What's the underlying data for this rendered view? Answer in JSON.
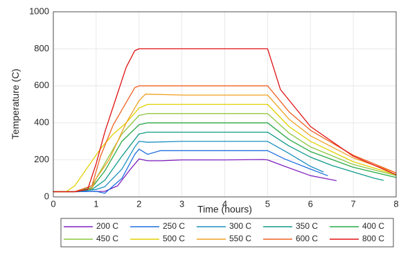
{
  "chart_data": {
    "type": "line",
    "xlabel": "Time (hours)",
    "ylabel": "Temperature (C)",
    "xlim": [
      0,
      8
    ],
    "ylim": [
      0,
      1000
    ],
    "xticks": [
      "0",
      "1",
      "2",
      "3",
      "4",
      "5",
      "6",
      "7",
      "8"
    ],
    "yticks": [
      "0",
      "200",
      "400",
      "600",
      "800",
      "1000"
    ],
    "grid": true,
    "legend_placement": "bottom",
    "series": [
      {
        "name": "200 C",
        "color": "#7f1fbf",
        "x": [
          0,
          0.5,
          1.2,
          1.5,
          1.8,
          2.0,
          2.2,
          2.5,
          3.0,
          4.0,
          4.9,
          5.0,
          5.4,
          6.0,
          6.6
        ],
        "y": [
          28,
          28,
          30,
          60,
          150,
          205,
          195,
          195,
          200,
          200,
          202,
          200,
          165,
          115,
          88
        ]
      },
      {
        "name": "250 C",
        "color": "#1f6fe0",
        "x": [
          0,
          0.5,
          1.0,
          1.2,
          1.6,
          1.9,
          2.0,
          2.2,
          2.5,
          3.0,
          4.0,
          5.0,
          5.4,
          6.0,
          6.4
        ],
        "y": [
          28,
          28,
          30,
          20,
          100,
          230,
          258,
          230,
          250,
          250,
          250,
          250,
          205,
          150,
          115
        ]
      },
      {
        "name": "300 C",
        "color": "#1a8fc0",
        "x": [
          0,
          0.5,
          1.0,
          1.2,
          1.6,
          1.9,
          2.0,
          2.2,
          3.0,
          4.0,
          5.0,
          5.5,
          6.0,
          6.3
        ],
        "y": [
          28,
          28,
          40,
          55,
          150,
          270,
          300,
          295,
          300,
          300,
          300,
          235,
          165,
          135
        ]
      },
      {
        "name": "350 C",
        "color": "#109a8a",
        "x": [
          0,
          0.5,
          0.9,
          1.2,
          1.6,
          2.0,
          2.2,
          3.0,
          4.0,
          5.0,
          5.5,
          6.0,
          6.5,
          7.0,
          7.5,
          7.7
        ],
        "y": [
          28,
          28,
          40,
          90,
          220,
          340,
          350,
          350,
          350,
          350,
          275,
          215,
          170,
          135,
          100,
          90
        ]
      },
      {
        "name": "400 C",
        "color": "#28a844",
        "x": [
          0,
          0.5,
          0.9,
          1.2,
          1.6,
          2.0,
          2.2,
          3.0,
          4.0,
          5.0,
          5.5,
          6.0,
          7.0,
          8.0
        ],
        "y": [
          28,
          28,
          50,
          140,
          300,
          390,
          400,
          400,
          400,
          400,
          310,
          245,
          160,
          105
        ]
      },
      {
        "name": "450 C",
        "color": "#8cc63e",
        "x": [
          0,
          0.5,
          0.9,
          1.2,
          1.6,
          2.0,
          2.2,
          3.0,
          4.0,
          5.0,
          5.5,
          6.0,
          7.0,
          8.0
        ],
        "y": [
          28,
          28,
          60,
          180,
          340,
          440,
          450,
          450,
          450,
          450,
          345,
          270,
          175,
          115
        ]
      },
      {
        "name": "500 C",
        "color": "#e0d000",
        "x": [
          0,
          0.3,
          0.5,
          0.8,
          1.1,
          1.4,
          1.7,
          2.0,
          2.2,
          3.0,
          4.0,
          5.0,
          5.5,
          6.0,
          7.0,
          8.0
        ],
        "y": [
          28,
          28,
          60,
          160,
          260,
          340,
          400,
          480,
          500,
          500,
          500,
          500,
          380,
          300,
          190,
          120
        ]
      },
      {
        "name": "550 C",
        "color": "#f0a020",
        "x": [
          0,
          0.5,
          0.9,
          1.0,
          1.3,
          1.7,
          2.0,
          2.15,
          3.0,
          4.0,
          5.0,
          5.5,
          6.0,
          7.0,
          8.0
        ],
        "y": [
          28,
          28,
          45,
          100,
          200,
          400,
          520,
          555,
          550,
          550,
          550,
          420,
          330,
          210,
          130
        ]
      },
      {
        "name": "600 C",
        "color": "#f06020",
        "x": [
          0,
          0.5,
          0.9,
          1.1,
          1.4,
          1.7,
          1.9,
          2.0,
          3.0,
          4.0,
          5.0,
          5.5,
          6.0,
          7.0,
          8.0
        ],
        "y": [
          28,
          28,
          60,
          220,
          390,
          510,
          590,
          600,
          600,
          600,
          600,
          460,
          360,
          225,
          130
        ]
      },
      {
        "name": "800 C",
        "color": "#e01010",
        "x": [
          0,
          0.5,
          0.8,
          1.0,
          1.2,
          1.5,
          1.7,
          1.9,
          2.0,
          3.0,
          4.0,
          5.0,
          5.3,
          6.0,
          7.0,
          8.0
        ],
        "y": [
          28,
          28,
          40,
          180,
          350,
          560,
          700,
          790,
          800,
          800,
          800,
          800,
          580,
          380,
          220,
          120
        ]
      }
    ]
  }
}
